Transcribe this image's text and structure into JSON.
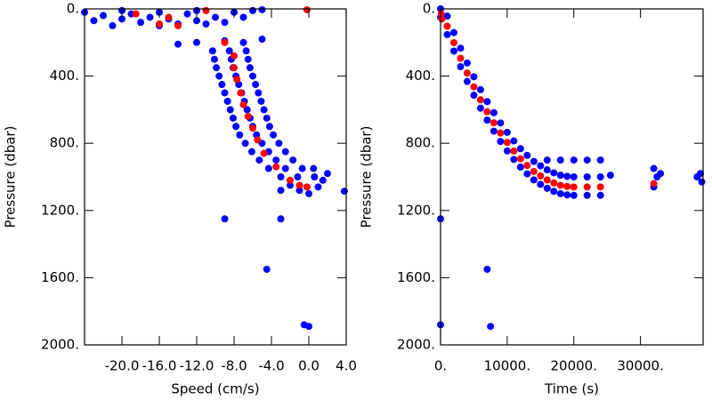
{
  "chart_data": [
    {
      "type": "scatter",
      "x_label": "Speed (cm/s)",
      "y_label": "Pressure (dbar)",
      "xlim": [
        -24,
        4
      ],
      "ylim": [
        2000,
        0
      ],
      "xticks": [
        {
          "value": -20,
          "label": "-20.0"
        },
        {
          "value": -16,
          "label": "-16.0"
        },
        {
          "value": -12,
          "label": "-12.0"
        },
        {
          "value": -8,
          "label": "-8.0"
        },
        {
          "value": -4,
          "label": "-4.0"
        },
        {
          "value": 0,
          "label": "0.0"
        },
        {
          "value": 4,
          "label": "4.0"
        }
      ],
      "yticks": [
        {
          "value": 0,
          "label": "0."
        },
        {
          "value": 400,
          "label": "400."
        },
        {
          "value": 800,
          "label": "800."
        },
        {
          "value": 1200,
          "label": "1200."
        },
        {
          "value": 1600,
          "label": "1600."
        },
        {
          "value": 2000,
          "label": "2000."
        }
      ],
      "series": [
        {
          "color": "#0000ff",
          "x": [
            -24,
            -22,
            -20,
            -18,
            -16,
            -14,
            -12,
            -10,
            -8,
            -6,
            -21,
            -17,
            -13,
            -11,
            -9,
            -15,
            -19,
            -23,
            -7,
            -5,
            -20,
            -12,
            -16,
            -14,
            -12,
            -9,
            -5,
            -7,
            -10.3,
            -8.5,
            -6.7,
            -10.1,
            -8.3,
            -6.5,
            -9.9,
            -8.1,
            -6.3,
            -9.6,
            -7.8,
            -6,
            -9.3,
            -7.5,
            -5.7,
            -9,
            -7.2,
            -5.4,
            -8.7,
            -6.9,
            -5.1,
            -8.4,
            -6.6,
            -4.8,
            -8.1,
            -6.3,
            -4.5,
            -7.8,
            -6,
            -4.2,
            -7.4,
            -5.6,
            -3.8,
            -6.8,
            -5,
            -3.2,
            -6.1,
            -4.3,
            -2.5,
            -5.3,
            -3.5,
            -1.7,
            -4.3,
            -2.5,
            -0.7,
            -3,
            -1.2,
            0.6,
            -2,
            -1,
            0,
            1,
            2,
            1.5,
            0.5,
            -3,
            3.8,
            -9,
            -3,
            -4.5,
            -0.5,
            0
          ],
          "values": [
            20,
            40,
            60,
            80,
            100,
            90,
            70,
            50,
            20,
            10,
            100,
            50,
            30,
            90,
            80,
            60,
            30,
            70,
            50,
            5,
            10,
            10,
            20,
            210,
            200,
            190,
            180,
            200,
            250,
            250,
            250,
            300,
            300,
            300,
            350,
            350,
            350,
            400,
            400,
            400,
            450,
            450,
            450,
            500,
            500,
            500,
            550,
            550,
            550,
            600,
            600,
            600,
            650,
            650,
            650,
            700,
            700,
            700,
            750,
            750,
            750,
            800,
            800,
            800,
            850,
            850,
            850,
            900,
            900,
            900,
            950,
            950,
            950,
            1000,
            1000,
            1000,
            1050,
            1080,
            1100,
            1060,
            980,
            1020,
            950,
            1080,
            1085,
            1250,
            1250,
            1550,
            1880,
            1890
          ]
        },
        {
          "color": "#ff0000",
          "x": [
            -18.5,
            -15,
            -14,
            -16,
            -11,
            -0.2,
            -9,
            -8,
            -8,
            -7.7,
            -7.3,
            -7,
            -6.5,
            -6,
            -5.5,
            -4.8,
            -3.5,
            -2,
            -1,
            -0.2
          ],
          "values": [
            30,
            50,
            100,
            90,
            10,
            5,
            200,
            280,
            350,
            420,
            500,
            570,
            640,
            710,
            780,
            860,
            940,
            1020,
            1050,
            1060
          ]
        }
      ]
    },
    {
      "type": "scatter",
      "x_label": "Time (s)",
      "y_label": "Pressure (dbar)",
      "xlim": [
        0,
        39400
      ],
      "ylim": [
        2000,
        0
      ],
      "xticks": [
        {
          "value": 0,
          "label": "0."
        },
        {
          "value": 10000,
          "label": "10000."
        },
        {
          "value": 20000,
          "label": "20000."
        },
        {
          "value": 30000,
          "label": "30000."
        }
      ],
      "yticks": [
        {
          "value": 0,
          "label": "0."
        },
        {
          "value": 400,
          "label": "400."
        },
        {
          "value": 800,
          "label": "800."
        },
        {
          "value": 1200,
          "label": "1200."
        },
        {
          "value": 1600,
          "label": "1600."
        },
        {
          "value": 2000,
          "label": "2000."
        }
      ],
      "series": [
        {
          "color": "#0000ff",
          "x": [
            0,
            0,
            1000,
            1000,
            2000,
            2000,
            3000,
            3000,
            4000,
            4000,
            5000,
            5000,
            6000,
            6000,
            7000,
            7000,
            8000,
            8000,
            9000,
            9000,
            10000,
            10000,
            11000,
            11000,
            12000,
            12000,
            13000,
            13000,
            14000,
            14000,
            15000,
            15000,
            16000,
            16000,
            17000,
            17000,
            18000,
            18000,
            19000,
            19000,
            20000,
            20000,
            22000,
            22000,
            24000,
            24000,
            16000,
            18000,
            20000,
            22000,
            24000,
            25500,
            32000,
            32500,
            32000,
            33000,
            38500,
            39000,
            39200,
            0,
            7000,
            7500,
            0
          ],
          "values": [
            0,
            50,
            43,
            153,
            141,
            251,
            234,
            344,
            322,
            432,
            404,
            514,
            481,
            591,
            552,
            662,
            618,
            728,
            679,
            789,
            735,
            845,
            786,
            896,
            832,
            942,
            872,
            982,
            908,
            1018,
            934,
            1044,
            958,
            1068,
            976,
            1086,
            990,
            1100,
            997,
            1107,
            1000,
            1110,
            1000,
            1110,
            1000,
            1110,
            900,
            900,
            900,
            900,
            900,
            990,
            950,
            1000,
            1060,
            980,
            1000,
            980,
            1030,
            1250,
            1550,
            1890,
            1880
          ]
        },
        {
          "color": "#ff0000",
          "x": [
            100,
            200,
            1000,
            2000,
            3000,
            4000,
            5000,
            6000,
            7000,
            8000,
            9000,
            10000,
            11000,
            12000,
            13000,
            14000,
            15000,
            16000,
            17000,
            18000,
            19000,
            20000,
            22000,
            24000,
            32000
          ],
          "values": [
            30,
            60,
            103,
            201,
            294,
            382,
            464,
            541,
            612,
            678,
            739,
            795,
            846,
            892,
            932,
            968,
            994,
            1018,
            1036,
            1050,
            1057,
            1060,
            1060,
            1060,
            1040
          ]
        }
      ]
    }
  ]
}
